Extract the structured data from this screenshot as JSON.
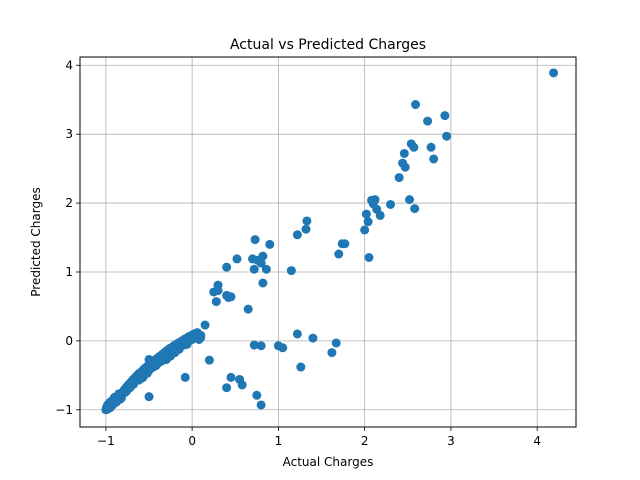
{
  "chart_data": {
    "type": "scatter",
    "title": "Actual vs Predicted Charges",
    "xlabel": "Actual Charges",
    "ylabel": "Predicted Charges",
    "xlim": [
      -1.3,
      4.45
    ],
    "ylim": [
      -1.25,
      4.12
    ],
    "xticks": [
      -1,
      0,
      1,
      2,
      3,
      4
    ],
    "yticks": [
      -1,
      0,
      1,
      2,
      3,
      4
    ],
    "grid": true,
    "marker_color": "#1f77b4",
    "points": [
      [
        -1.0,
        -1.0
      ],
      [
        -0.99,
        -0.96
      ],
      [
        -0.98,
        -0.93
      ],
      [
        -0.97,
        -0.95
      ],
      [
        -0.96,
        -0.9
      ],
      [
        -0.95,
        -0.92
      ],
      [
        -0.94,
        -0.88
      ],
      [
        -0.93,
        -0.89
      ],
      [
        -0.92,
        -0.86
      ],
      [
        -0.91,
        -0.87
      ],
      [
        -0.9,
        -0.84
      ],
      [
        -0.89,
        -0.85
      ],
      [
        -0.88,
        -0.82
      ],
      [
        -0.87,
        -0.83
      ],
      [
        -0.86,
        -0.8
      ],
      [
        -0.85,
        -0.81
      ],
      [
        -0.84,
        -0.78
      ],
      [
        -0.83,
        -0.79
      ],
      [
        -0.82,
        -0.76
      ],
      [
        -0.81,
        -0.77
      ],
      [
        -0.8,
        -0.74
      ],
      [
        -0.79,
        -0.72
      ],
      [
        -0.78,
        -0.7
      ],
      [
        -0.77,
        -0.69
      ],
      [
        -0.76,
        -0.67
      ],
      [
        -0.75,
        -0.66
      ],
      [
        -0.74,
        -0.64
      ],
      [
        -0.73,
        -0.63
      ],
      [
        -0.72,
        -0.62
      ],
      [
        -0.71,
        -0.6
      ],
      [
        -0.7,
        -0.59
      ],
      [
        -0.69,
        -0.57
      ],
      [
        -0.68,
        -0.56
      ],
      [
        -0.67,
        -0.55
      ],
      [
        -0.66,
        -0.53
      ],
      [
        -0.65,
        -0.52
      ],
      [
        -0.64,
        -0.51
      ],
      [
        -0.63,
        -0.49
      ],
      [
        -0.62,
        -0.48
      ],
      [
        -0.61,
        -0.47
      ],
      [
        -0.6,
        -0.46
      ],
      [
        -0.58,
        -0.44
      ],
      [
        -0.56,
        -0.41
      ],
      [
        -0.54,
        -0.39
      ],
      [
        -0.52,
        -0.37
      ],
      [
        -0.5,
        -0.35
      ],
      [
        -0.48,
        -0.33
      ],
      [
        -0.46,
        -0.31
      ],
      [
        -0.44,
        -0.29
      ],
      [
        -0.42,
        -0.27
      ],
      [
        -0.4,
        -0.25
      ],
      [
        -0.38,
        -0.23
      ],
      [
        -0.36,
        -0.21
      ],
      [
        -0.34,
        -0.19
      ],
      [
        -0.32,
        -0.17
      ],
      [
        -0.3,
        -0.15
      ],
      [
        -0.28,
        -0.13
      ],
      [
        -0.26,
        -0.11
      ],
      [
        -0.24,
        -0.1
      ],
      [
        -0.22,
        -0.08
      ],
      [
        -0.2,
        -0.06
      ],
      [
        -0.18,
        -0.05
      ],
      [
        -0.16,
        -0.03
      ],
      [
        -0.14,
        -0.02
      ],
      [
        -0.12,
        0.0
      ],
      [
        -0.1,
        0.01
      ],
      [
        -0.08,
        0.03
      ],
      [
        -0.06,
        0.04
      ],
      [
        -0.04,
        0.06
      ],
      [
        -0.02,
        0.07
      ],
      [
        0.0,
        0.08
      ],
      [
        0.02,
        0.1
      ],
      [
        -0.84,
        -0.85
      ],
      [
        -0.76,
        -0.73
      ],
      [
        -0.7,
        -0.62
      ],
      [
        -0.66,
        -0.58
      ],
      [
        -0.6,
        -0.53
      ],
      [
        -0.55,
        -0.48
      ],
      [
        -0.5,
        -0.43
      ],
      [
        -0.45,
        -0.38
      ],
      [
        -0.4,
        -0.33
      ],
      [
        -0.35,
        -0.29
      ],
      [
        -0.3,
        -0.27
      ],
      [
        -0.25,
        -0.22
      ],
      [
        -0.2,
        -0.17
      ],
      [
        -0.15,
        -0.12
      ],
      [
        -0.1,
        -0.06
      ],
      [
        -0.05,
        -0.02
      ],
      [
        0.0,
        0.02
      ],
      [
        0.05,
        0.05
      ],
      [
        0.06,
        0.12
      ],
      [
        0.1,
        0.08
      ],
      [
        -0.98,
        -0.99
      ],
      [
        -0.95,
        -0.97
      ],
      [
        -0.92,
        -0.93
      ],
      [
        -0.88,
        -0.89
      ],
      [
        -0.82,
        -0.83
      ],
      [
        -0.78,
        -0.75
      ],
      [
        -0.72,
        -0.68
      ],
      [
        -0.68,
        -0.63
      ],
      [
        -0.62,
        -0.57
      ],
      [
        -0.57,
        -0.53
      ],
      [
        -0.52,
        -0.47
      ],
      [
        -0.48,
        -0.4
      ],
      [
        -0.42,
        -0.36
      ],
      [
        -0.38,
        -0.31
      ],
      [
        -0.34,
        -0.26
      ],
      [
        -0.28,
        -0.24
      ],
      [
        -0.24,
        -0.19
      ],
      [
        -0.18,
        -0.14
      ],
      [
        0.15,
        0.23
      ],
      [
        0.2,
        -0.28
      ],
      [
        -0.08,
        -0.53
      ],
      [
        -0.5,
        -0.81
      ],
      [
        0.25,
        0.71
      ],
      [
        0.28,
        0.57
      ],
      [
        0.3,
        0.81
      ],
      [
        0.3,
        0.73
      ],
      [
        0.4,
        0.66
      ],
      [
        0.42,
        0.63
      ],
      [
        0.45,
        0.64
      ],
      [
        0.4,
        1.07
      ],
      [
        0.52,
        1.19
      ],
      [
        0.65,
        0.46
      ],
      [
        0.7,
        1.19
      ],
      [
        0.72,
        1.04
      ],
      [
        0.73,
        1.47
      ],
      [
        0.76,
        1.17
      ],
      [
        0.8,
        1.13
      ],
      [
        0.82,
        1.23
      ],
      [
        0.82,
        0.84
      ],
      [
        0.86,
        1.04
      ],
      [
        0.9,
        1.4
      ],
      [
        1.15,
        1.02
      ],
      [
        1.22,
        1.54
      ],
      [
        1.32,
        1.62
      ],
      [
        1.33,
        1.74
      ],
      [
        1.7,
        1.26
      ],
      [
        1.74,
        1.41
      ],
      [
        1.77,
        1.41
      ],
      [
        2.0,
        1.61
      ],
      [
        2.02,
        1.84
      ],
      [
        2.04,
        1.73
      ],
      [
        2.05,
        1.21
      ],
      [
        2.08,
        2.04
      ],
      [
        2.1,
        1.99
      ],
      [
        2.12,
        2.05
      ],
      [
        2.14,
        1.91
      ],
      [
        2.18,
        1.82
      ],
      [
        2.3,
        1.98
      ],
      [
        2.4,
        2.37
      ],
      [
        2.44,
        2.58
      ],
      [
        2.46,
        2.72
      ],
      [
        2.47,
        2.52
      ],
      [
        2.52,
        2.05
      ],
      [
        2.54,
        2.86
      ],
      [
        2.57,
        2.81
      ],
      [
        2.58,
        1.92
      ],
      [
        2.59,
        3.43
      ],
      [
        2.73,
        3.19
      ],
      [
        2.77,
        2.81
      ],
      [
        2.8,
        2.64
      ],
      [
        2.93,
        3.27
      ],
      [
        2.95,
        2.97
      ],
      [
        4.19,
        3.89
      ],
      [
        0.4,
        -0.68
      ],
      [
        0.45,
        -0.53
      ],
      [
        0.55,
        -0.56
      ],
      [
        0.58,
        -0.64
      ],
      [
        0.75,
        -0.79
      ],
      [
        0.8,
        -0.93
      ],
      [
        0.72,
        -0.06
      ],
      [
        0.8,
        -0.07
      ],
      [
        1.0,
        -0.07
      ],
      [
        1.05,
        -0.1
      ],
      [
        1.22,
        0.1
      ],
      [
        1.26,
        -0.38
      ],
      [
        1.4,
        0.04
      ],
      [
        1.62,
        -0.17
      ],
      [
        1.67,
        -0.03
      ],
      [
        -0.06,
        -0.05
      ],
      [
        -0.1,
        0.0
      ],
      [
        0.08,
        0.02
      ],
      [
        0.1,
        0.05
      ],
      [
        -0.5,
        -0.27
      ],
      [
        -0.4,
        -0.32
      ],
      [
        -0.3,
        -0.27
      ],
      [
        -0.6,
        -0.55
      ],
      [
        -0.9,
        -0.82
      ],
      [
        -0.85,
        -0.77
      ]
    ]
  }
}
